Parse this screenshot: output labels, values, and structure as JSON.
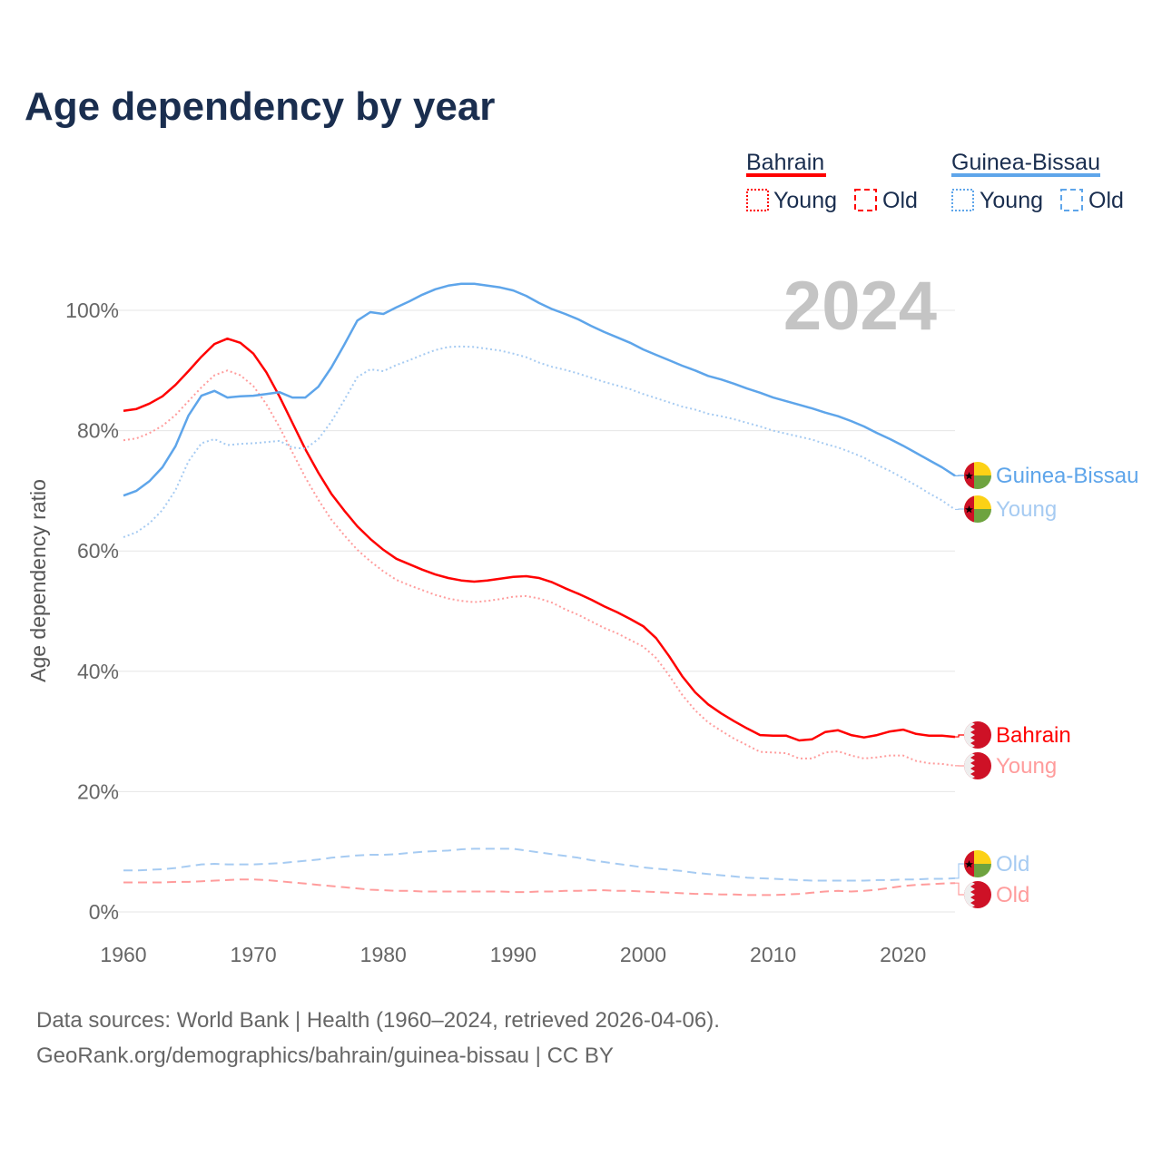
{
  "title": "Age dependency by year",
  "legend": {
    "countries": [
      {
        "name": "Bahrain",
        "color": "#ff0000",
        "light": "#ff9c9c"
      },
      {
        "name": "Guinea-Bissau",
        "color": "#5ea5ea",
        "light": "#a6cbf2"
      }
    ],
    "young_label": "Young",
    "old_label": "Old"
  },
  "year_watermark": "2024",
  "footer": {
    "line1": "Data sources: World Bank | Health (1960–2024, retrieved 2026-04-06).",
    "line2": "GeoRank.org/demographics/bahrain/guinea-bissau | CC BY"
  },
  "end_labels": {
    "gb_total": "Guinea-Bissau",
    "gb_young": "Young",
    "bh_total": "Bahrain",
    "bh_young": "Young",
    "gb_old": "Old",
    "bh_old": "Old"
  },
  "chart_data": {
    "type": "line",
    "title": "Age dependency by year",
    "xlabel": "",
    "ylabel": "Age dependency ratio",
    "xlim": [
      1960,
      2024
    ],
    "ylim": [
      0,
      100
    ],
    "x_ticks": [
      "1960",
      "1970",
      "1980",
      "1990",
      "2000",
      "2010",
      "2020"
    ],
    "y_ticks": [
      "0%",
      "20%",
      "40%",
      "60%",
      "80%",
      "100%"
    ],
    "grid": true,
    "legend_position": "top-right",
    "x_start": 1960,
    "series": [
      {
        "name": "Bahrain",
        "kind": "total",
        "values": [
          83.3,
          83.6,
          84.5,
          85.7,
          87.6,
          89.9,
          92.3,
          94.4,
          95.3,
          94.6,
          92.8,
          89.7,
          85.7,
          81.3,
          76.9,
          73.0,
          69.5,
          66.7,
          64.1,
          62.0,
          60.2,
          58.7,
          57.8,
          56.9,
          56.1,
          55.5,
          55.1,
          54.9,
          55.1,
          55.4,
          55.7,
          55.8,
          55.5,
          54.8,
          53.8,
          52.9,
          51.9,
          50.8,
          49.8,
          48.7,
          47.5,
          45.5,
          42.5,
          39.2,
          36.5,
          34.5,
          33.0,
          31.7,
          30.5,
          29.4,
          29.3,
          29.3,
          28.5,
          28.7,
          29.9,
          30.2,
          29.4,
          29.0,
          29.4,
          30.0,
          30.3,
          29.6,
          29.3,
          29.3,
          29.1
        ]
      },
      {
        "name": "Bahrain Young",
        "kind": "young",
        "values": [
          78.4,
          78.7,
          79.6,
          80.8,
          82.6,
          84.9,
          87.2,
          89.2,
          90.0,
          89.2,
          87.4,
          84.4,
          80.6,
          76.4,
          72.2,
          68.5,
          65.2,
          62.6,
          60.2,
          58.3,
          56.6,
          55.2,
          54.3,
          53.5,
          52.7,
          52.1,
          51.7,
          51.5,
          51.7,
          52.0,
          52.4,
          52.5,
          52.1,
          51.4,
          50.3,
          49.4,
          48.3,
          47.2,
          46.3,
          45.2,
          44.1,
          42.2,
          39.3,
          36.1,
          33.5,
          31.5,
          30.1,
          28.8,
          27.7,
          26.6,
          26.5,
          26.4,
          25.5,
          25.5,
          26.5,
          26.7,
          26.0,
          25.5,
          25.7,
          26.0,
          26.0,
          25.1,
          24.7,
          24.6,
          24.3
        ]
      },
      {
        "name": "Bahrain Old",
        "kind": "old",
        "values": [
          4.9,
          4.9,
          4.9,
          4.9,
          5.0,
          5.0,
          5.1,
          5.2,
          5.3,
          5.4,
          5.4,
          5.3,
          5.1,
          4.9,
          4.7,
          4.5,
          4.3,
          4.1,
          3.9,
          3.7,
          3.6,
          3.5,
          3.5,
          3.4,
          3.4,
          3.4,
          3.4,
          3.4,
          3.4,
          3.4,
          3.3,
          3.3,
          3.4,
          3.4,
          3.5,
          3.5,
          3.6,
          3.6,
          3.5,
          3.5,
          3.4,
          3.3,
          3.2,
          3.1,
          3.0,
          3.0,
          2.9,
          2.9,
          2.8,
          2.8,
          2.8,
          2.9,
          3.0,
          3.2,
          3.4,
          3.5,
          3.4,
          3.5,
          3.7,
          4.0,
          4.3,
          4.5,
          4.6,
          4.7,
          4.8
        ]
      },
      {
        "name": "Guinea-Bissau",
        "kind": "total",
        "values": [
          69.2,
          70.0,
          71.6,
          73.9,
          77.4,
          82.5,
          85.8,
          86.6,
          85.5,
          85.7,
          85.8,
          86.1,
          86.4,
          85.5,
          85.5,
          87.3,
          90.5,
          94.3,
          98.3,
          99.7,
          99.4,
          100.5,
          101.5,
          102.6,
          103.5,
          104.1,
          104.4,
          104.4,
          104.1,
          103.8,
          103.3,
          102.4,
          101.2,
          100.2,
          99.4,
          98.5,
          97.4,
          96.4,
          95.5,
          94.6,
          93.5,
          92.6,
          91.7,
          90.8,
          90.0,
          89.1,
          88.5,
          87.8,
          87.0,
          86.3,
          85.5,
          84.9,
          84.3,
          83.7,
          83.0,
          82.4,
          81.6,
          80.7,
          79.6,
          78.6,
          77.5,
          76.3,
          75.1,
          73.9,
          72.5
        ]
      },
      {
        "name": "Guinea-Bissau Young",
        "kind": "young",
        "values": [
          62.3,
          63.1,
          64.6,
          66.8,
          70.1,
          74.9,
          77.9,
          78.6,
          77.6,
          77.8,
          77.9,
          78.1,
          78.3,
          77.2,
          77.0,
          78.6,
          81.5,
          85.1,
          88.9,
          90.2,
          89.9,
          90.9,
          91.7,
          92.6,
          93.4,
          93.9,
          94.0,
          93.9,
          93.6,
          93.3,
          92.8,
          92.2,
          91.3,
          90.6,
          90.1,
          89.5,
          88.8,
          88.1,
          87.5,
          86.9,
          86.1,
          85.4,
          84.7,
          84.0,
          83.5,
          82.8,
          82.4,
          81.9,
          81.3,
          80.7,
          80.0,
          79.5,
          79.0,
          78.5,
          77.8,
          77.2,
          76.4,
          75.5,
          74.3,
          73.3,
          72.1,
          70.9,
          69.6,
          68.4,
          66.9
        ]
      },
      {
        "name": "Guinea-Bissau Old",
        "kind": "old",
        "values": [
          6.9,
          6.9,
          7.0,
          7.1,
          7.3,
          7.6,
          7.9,
          8.0,
          7.9,
          7.9,
          7.9,
          8.0,
          8.1,
          8.3,
          8.5,
          8.7,
          9.0,
          9.2,
          9.4,
          9.5,
          9.5,
          9.6,
          9.8,
          10.0,
          10.1,
          10.2,
          10.4,
          10.5,
          10.5,
          10.5,
          10.5,
          10.2,
          9.9,
          9.6,
          9.3,
          9.0,
          8.6,
          8.3,
          8.0,
          7.7,
          7.4,
          7.2,
          7.0,
          6.8,
          6.5,
          6.3,
          6.1,
          5.9,
          5.7,
          5.6,
          5.5,
          5.4,
          5.3,
          5.2,
          5.2,
          5.2,
          5.2,
          5.2,
          5.3,
          5.3,
          5.4,
          5.4,
          5.5,
          5.5,
          5.6
        ]
      }
    ]
  }
}
